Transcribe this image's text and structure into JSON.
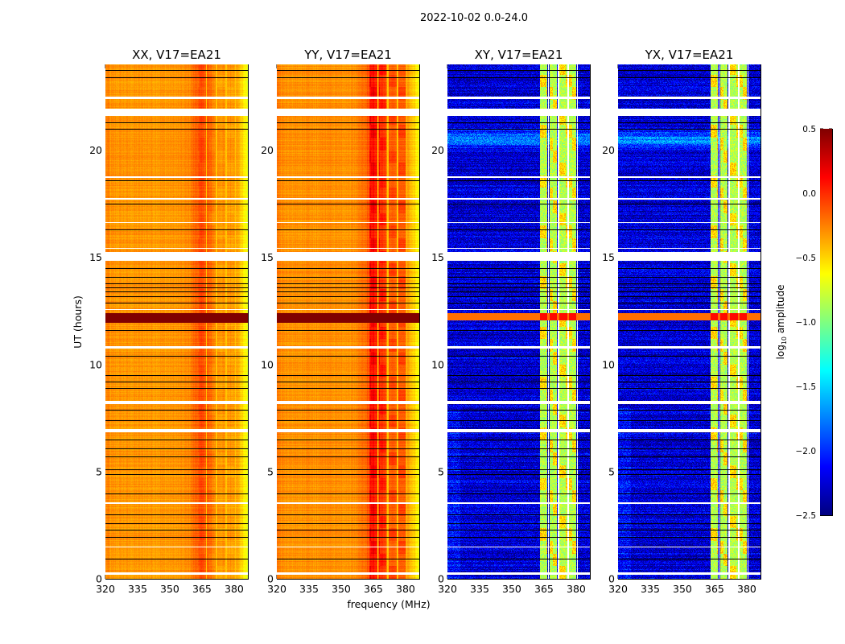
{
  "chart_data": {
    "type": "heatmap",
    "suptitle": "2022-10-02 0.0-24.0",
    "xlabel": "frequency (MHz)",
    "ylabel": "UT (hours)",
    "xlim": [
      320,
      386.4
    ],
    "ylim": [
      0,
      24
    ],
    "xticks": [
      320,
      335,
      350,
      365,
      380
    ],
    "yticks": [
      0,
      5,
      10,
      15,
      20
    ],
    "colormap": "jet",
    "colorbar": {
      "label": "log10 amplitude",
      "label_main": "log",
      "label_sub": "10",
      "label_rest": " amplitude",
      "range": [
        -2.5,
        0.5
      ],
      "ticks": [
        "0.5",
        "0.0",
        "−0.5",
        "−1.0",
        "−1.5",
        "−2.0",
        "−2.5"
      ],
      "tick_values": [
        0.5,
        0.0,
        -0.5,
        -1.0,
        -1.5,
        -2.0,
        -2.5
      ]
    },
    "panels": [
      {
        "title": "XX, V17=EA21",
        "kind": "parallel",
        "base": -0.32,
        "rfi_level": -0.05,
        "flag_band": [
          11.95,
          12.4
        ],
        "flag_value": 0.5
      },
      {
        "title": "YY, V17=EA21",
        "kind": "parallel",
        "base": -0.3,
        "rfi_level": 0.12,
        "flag_band": [
          11.95,
          12.4
        ],
        "flag_value": 0.5
      },
      {
        "title": "XY, V17=EA21",
        "kind": "cross",
        "base": -2.25,
        "rfi_level": -0.85,
        "flag_band": [
          12.05,
          12.4
        ],
        "flag_value": -0.2
      },
      {
        "title": "YX, V17=EA21",
        "kind": "cross",
        "base": -2.25,
        "rfi_level": -0.85,
        "flag_band": [
          12.05,
          12.4
        ],
        "flag_value": -0.2
      }
    ],
    "rfi_bands_mhz": [
      [
        363,
        366.6
      ],
      [
        367.6,
        371.2
      ],
      [
        372.2,
        375.8
      ],
      [
        376.8,
        380.2
      ]
    ],
    "rfi_separators_mhz": [
      367.1,
      371.7,
      376.3,
      380.6
    ],
    "flagged_gaps_hours": [
      [
        0.2,
        0.3
      ],
      [
        1.45,
        1.5
      ],
      [
        3.5,
        3.56
      ],
      [
        6.85,
        7.0
      ],
      [
        8.15,
        8.3
      ],
      [
        10.75,
        10.85
      ],
      [
        12.55,
        12.6
      ],
      [
        14.85,
        15.25
      ],
      [
        15.4,
        15.45
      ],
      [
        16.6,
        16.65
      ],
      [
        17.7,
        17.75
      ],
      [
        18.7,
        18.78
      ],
      [
        21.6,
        21.95
      ],
      [
        22.4,
        22.5
      ]
    ],
    "boundary_lines_hours": [
      0.95,
      1.95,
      2.3,
      2.6,
      3.0,
      4.0,
      4.9,
      5.1,
      5.7,
      6.1,
      6.5,
      7.4,
      7.9,
      8.9,
      9.2,
      9.5,
      10.4,
      11.6,
      12.9,
      13.2,
      13.4,
      13.6,
      13.8,
      14.1,
      14.5,
      16.3,
      17.5,
      18.6,
      21.0,
      21.3,
      23.4,
      23.75
    ]
  }
}
